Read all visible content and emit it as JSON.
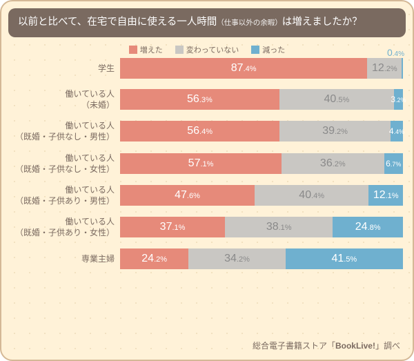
{
  "header": {
    "text_before": "以前と比べて、在宅で自由に使える一人時間",
    "text_sub": "（仕事以外の余暇）",
    "text_after": "は増えましたか？"
  },
  "colors": {
    "increased": "#e68a7a",
    "unchanged": "#c9c7c3",
    "decreased": "#6fb0cf",
    "card_bg": "#fff2d8",
    "card_border": "#d4b896",
    "header_bg": "#7a6a60",
    "text": "#7a6a60"
  },
  "legend": [
    {
      "key": "increased",
      "label": "増えた"
    },
    {
      "key": "unchanged",
      "label": "変わっていない"
    },
    {
      "key": "decreased",
      "label": "減った"
    }
  ],
  "chart": {
    "type": "stacked-bar-horizontal",
    "unit": "%",
    "categories": [
      {
        "label_lines": [
          "学生"
        ],
        "values": {
          "increased": 87.4,
          "unchanged": 12.2,
          "decreased": 0.4
        },
        "decreased_outside": true
      },
      {
        "label_lines": [
          "働いている人",
          "（未婚）"
        ],
        "values": {
          "increased": 56.3,
          "unchanged": 40.5,
          "decreased": 3.2
        }
      },
      {
        "label_lines": [
          "働いている人",
          "（既婚・子供なし・男性）"
        ],
        "values": {
          "increased": 56.4,
          "unchanged": 39.2,
          "decreased": 4.4
        }
      },
      {
        "label_lines": [
          "働いている人",
          "（既婚・子供なし・女性）"
        ],
        "values": {
          "increased": 57.1,
          "unchanged": 36.2,
          "decreased": 6.7
        }
      },
      {
        "label_lines": [
          "働いている人",
          "（既婚・子供あり・男性）"
        ],
        "values": {
          "increased": 47.6,
          "unchanged": 40.4,
          "decreased": 12.1
        }
      },
      {
        "label_lines": [
          "働いている人",
          "（既婚・子供あり・女性）"
        ],
        "values": {
          "increased": 37.1,
          "unchanged": 38.1,
          "decreased": 24.8
        }
      },
      {
        "label_lines": [
          "専業主婦"
        ],
        "values": {
          "increased": 24.2,
          "unchanged": 34.2,
          "decreased": 41.5
        }
      }
    ]
  },
  "footer": {
    "prefix": "総合電子書籍ストア「",
    "brand": "BookLive!",
    "suffix": "」調べ"
  }
}
